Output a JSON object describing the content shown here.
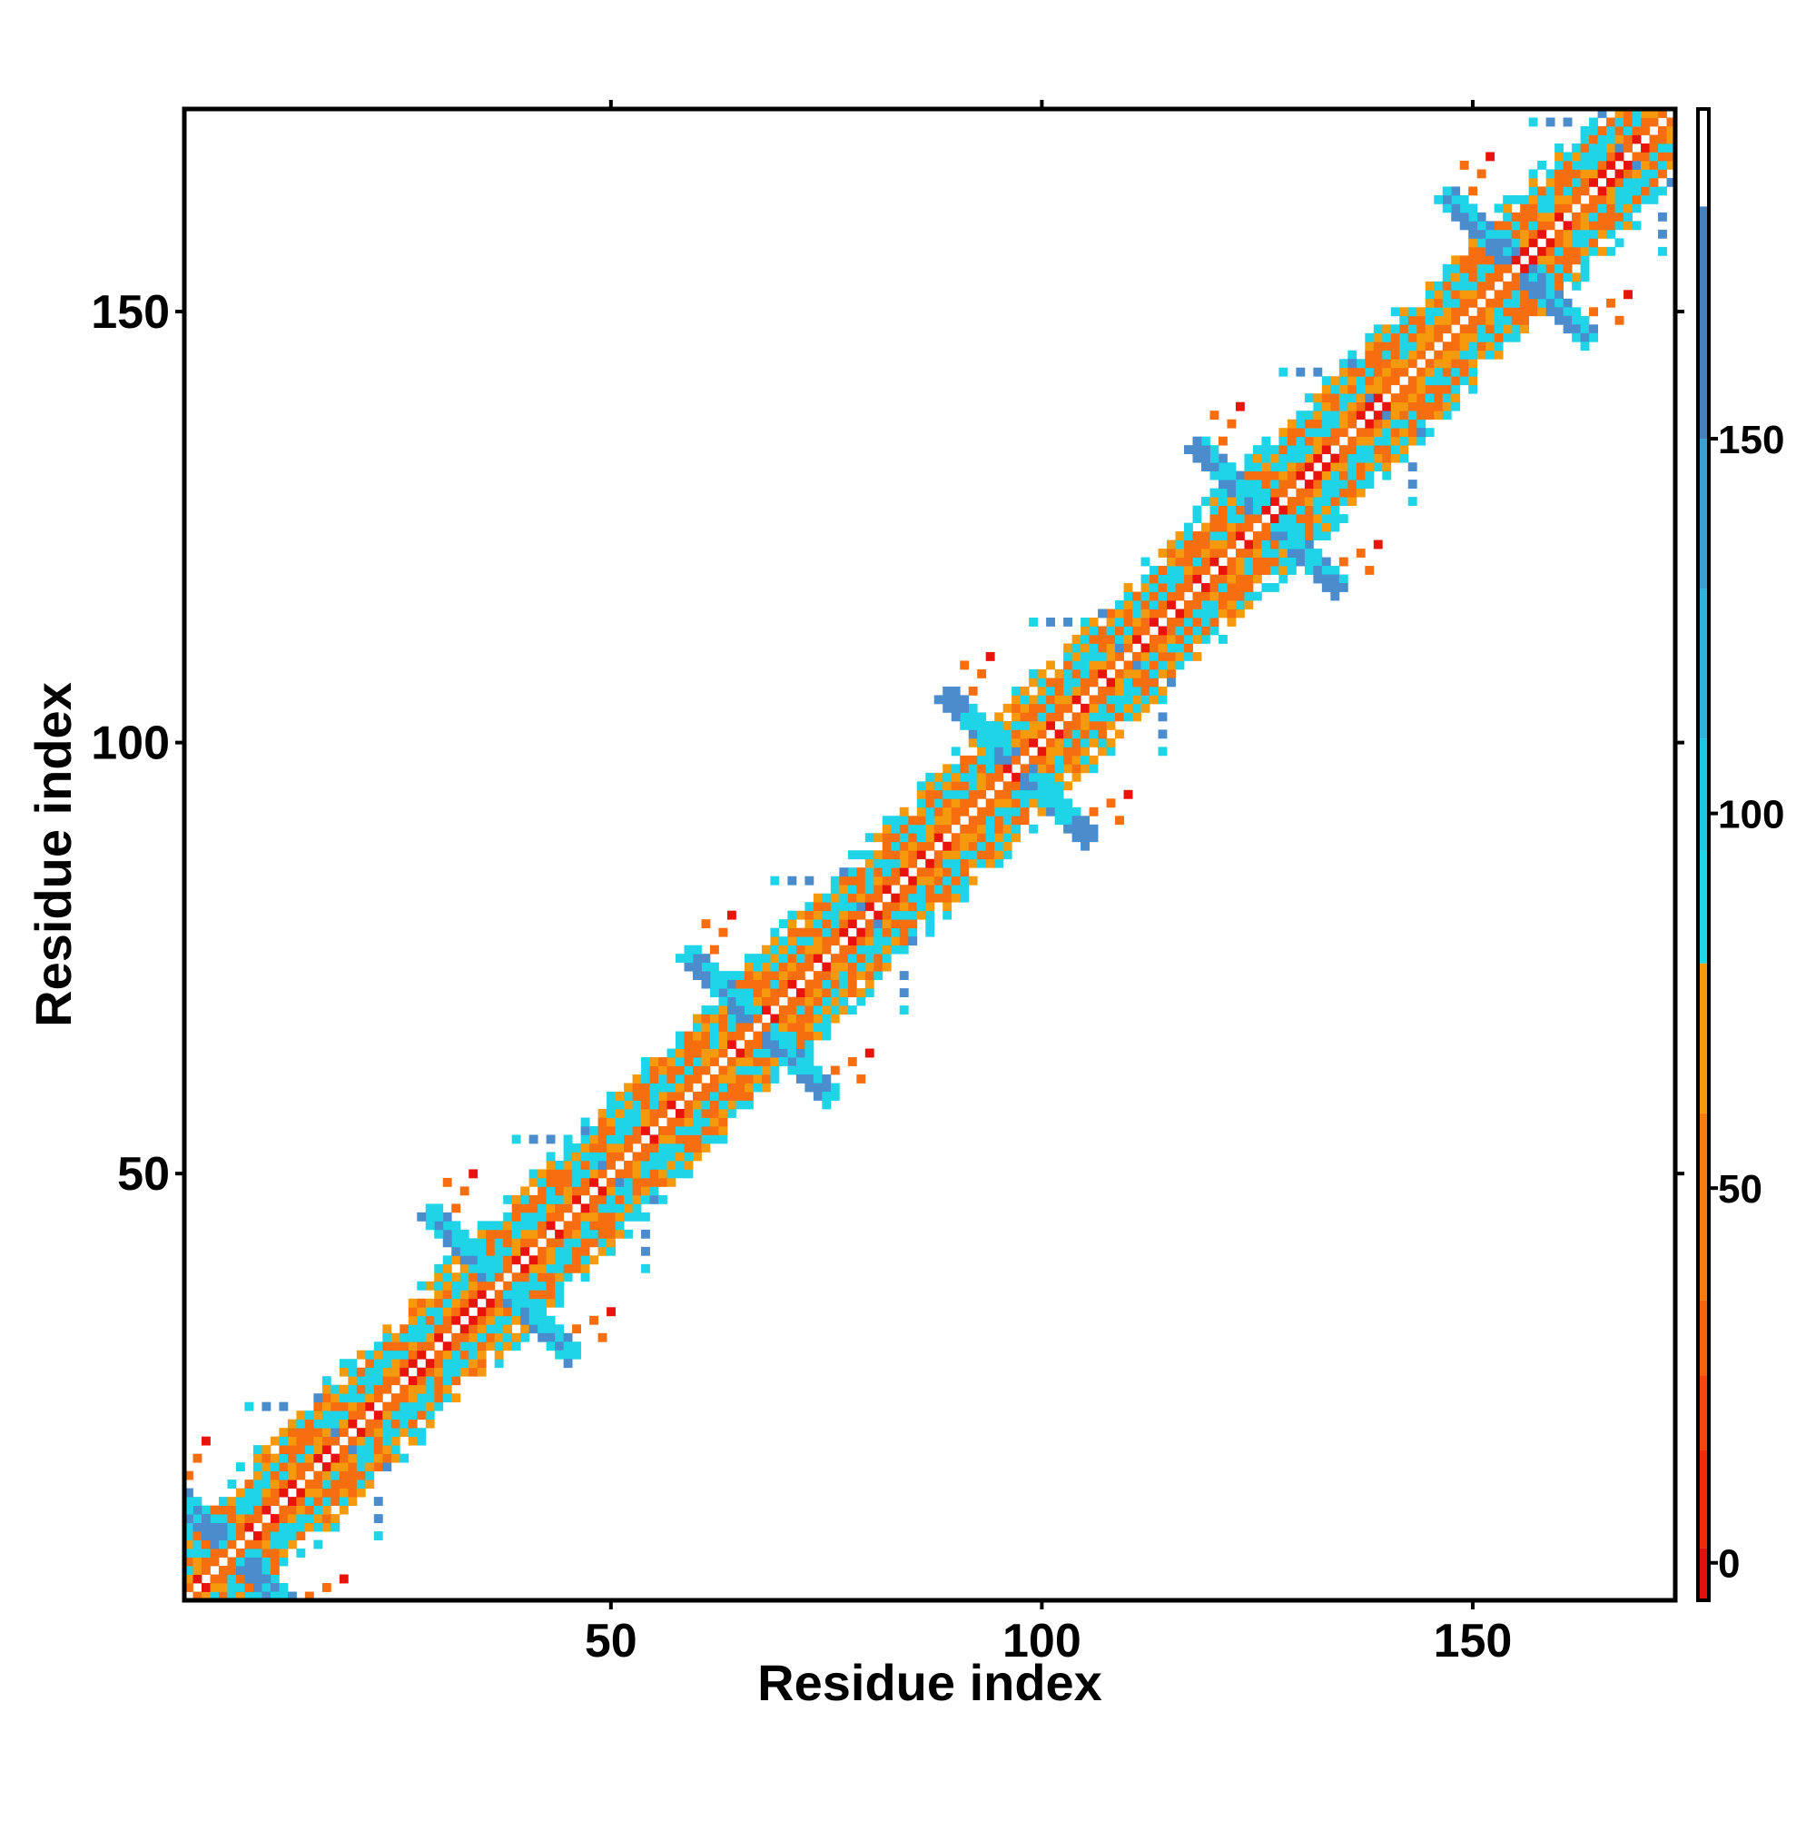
{
  "chart_data": {
    "type": "heatmap",
    "title": "",
    "xlabel": "Residue index",
    "ylabel": "Residue index",
    "xlim": [
      1,
      173
    ],
    "ylim": [
      1,
      173
    ],
    "xticks": [
      50,
      100,
      150
    ],
    "yticks": [
      50,
      100,
      150
    ],
    "grid": false,
    "colorbar": {
      "position": "right",
      "range": [
        -5,
        194
      ],
      "ticks": [
        0,
        50,
        100,
        150
      ],
      "bands": [
        {
          "from": -5,
          "to": 2,
          "color": "#e0120b"
        },
        {
          "from": 2,
          "to": 15,
          "color": "#f22a0c"
        },
        {
          "from": 15,
          "to": 25,
          "color": "#f4460d"
        },
        {
          "from": 25,
          "to": 35,
          "color": "#f5620e"
        },
        {
          "from": 35,
          "to": 60,
          "color": "#f77c10"
        },
        {
          "from": 60,
          "to": 80,
          "color": "#f59a0c"
        },
        {
          "from": 80,
          "to": 95,
          "color": "#1fd6e8"
        },
        {
          "from": 95,
          "to": 110,
          "color": "#1bc6e0"
        },
        {
          "from": 110,
          "to": 130,
          "color": "#2fb3dc"
        },
        {
          "from": 130,
          "to": 150,
          "color": "#3a9fd2"
        },
        {
          "from": 150,
          "to": 181,
          "color": "#4680bd"
        },
        {
          "from": 181,
          "to": 194,
          "color": "#ffffff"
        }
      ]
    },
    "block_centers": [
      6,
      37,
      67,
      97,
      126,
      155
    ],
    "colors": {
      "red": "#e8140c",
      "orange": "#f76e10",
      "amber": "#f59a0c",
      "cyan": "#1ed4e6",
      "blue": "#4a8ccc"
    }
  }
}
